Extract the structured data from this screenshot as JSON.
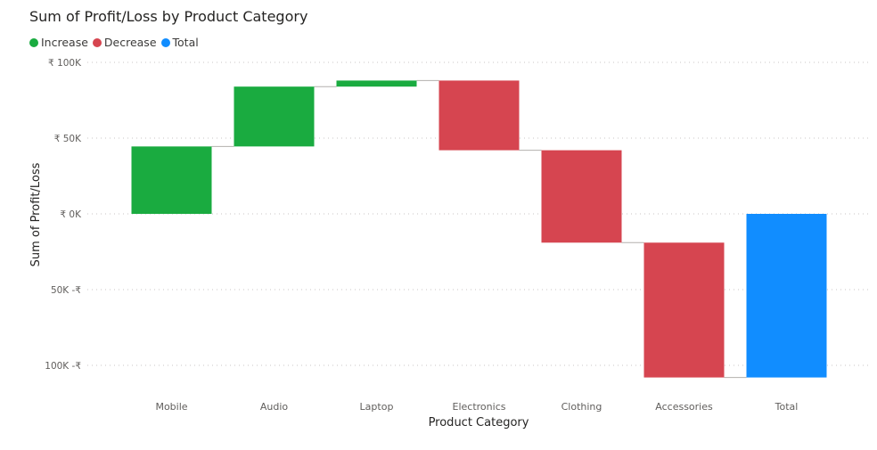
{
  "chart_data": {
    "type": "waterfall",
    "title": "Sum of Profit/Loss by Product Category",
    "xlabel": "Product Category",
    "ylabel": "Sum of Profit/Loss",
    "legend": [
      {
        "name": "Increase",
        "color": "#1aab40"
      },
      {
        "name": "Decrease",
        "color": "#d64550"
      },
      {
        "name": "Total",
        "color": "#118dff"
      }
    ],
    "legend_position": "top-left",
    "grid": true,
    "ylim": [
      -108000,
      100000
    ],
    "yticks": [
      {
        "value": 100000,
        "label": "₹ 100K"
      },
      {
        "value": 50000,
        "label": "₹ 50K"
      },
      {
        "value": 0,
        "label": "₹ 0K"
      },
      {
        "value": -50000,
        "label": "50K -₹"
      },
      {
        "value": -100000,
        "label": "100K -₹"
      }
    ],
    "categories": [
      "Mobile",
      "Audio",
      "Laptop",
      "Electronics",
      "Clothing",
      "Accessories",
      "Total"
    ],
    "values": [
      44500,
      39500,
      4000,
      -46000,
      -61000,
      -89000,
      -108000
    ],
    "kinds": [
      "increase",
      "increase",
      "increase",
      "decrease",
      "decrease",
      "decrease",
      "total"
    ]
  }
}
